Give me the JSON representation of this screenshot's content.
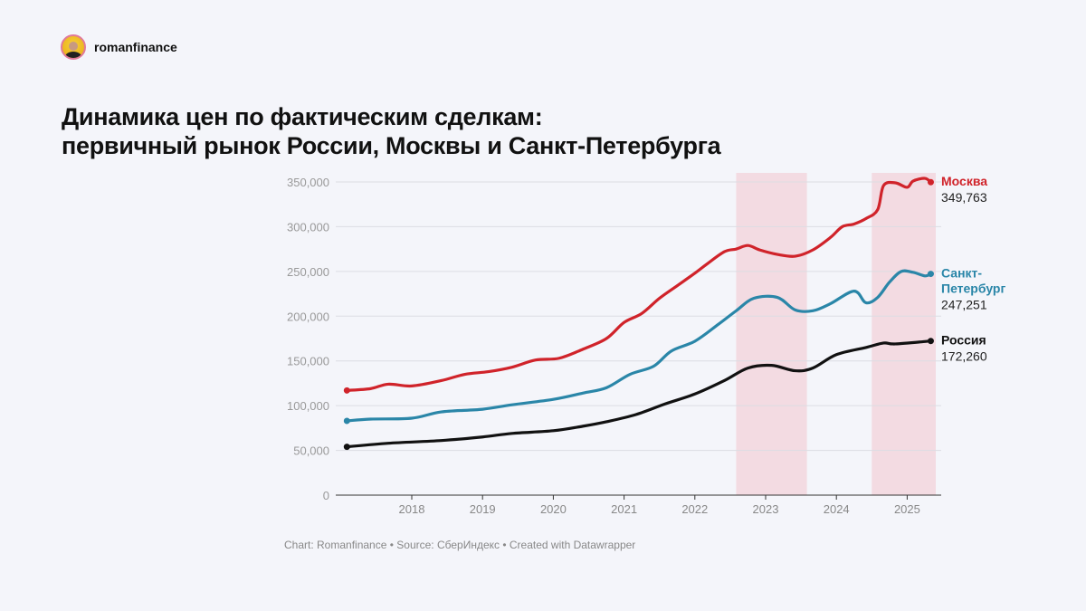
{
  "brand": {
    "name": "romanfinance",
    "avatar_icon": "author-avatar"
  },
  "title_line1": "Динамика цен по фактическим сделкам:",
  "title_line2": "первичный рынок России, Москвы и Санкт-Петербурга",
  "footer": "Chart: Romanfinance • Source: СберИндекс • Created with Datawrapper",
  "chart_data": {
    "type": "line",
    "title": "Динамика цен по фактическим сделкам: первичный рынок России, Москвы и Санкт-Петербурга",
    "ylim": [
      0,
      350000
    ],
    "y_ticks": [
      0,
      50000,
      100000,
      150000,
      200000,
      250000,
      300000,
      350000
    ],
    "y_tick_labels": [
      "0",
      "50,000",
      "100,000",
      "150,000",
      "200,000",
      "250,000",
      "300,000",
      "350,000"
    ],
    "x_tick_labels": [
      "2018",
      "2019",
      "2020",
      "2021",
      "2022",
      "2023",
      "2024",
      "2025"
    ],
    "xlim": [
      "2017-01",
      "2025-07"
    ],
    "grid": true,
    "legend": "direct labels at line ends (right)",
    "shaded_periods": [
      [
        "2022-08",
        "2023-08"
      ],
      [
        "2024-07",
        "2025-07"
      ]
    ],
    "shade_color": "#f3dbe2",
    "series": [
      {
        "name": "Москва",
        "last_label": "349,763",
        "color": "#d0232a",
        "points": [
          [
            "2017-02",
            117000
          ],
          [
            "2017-06",
            119000
          ],
          [
            "2017-09",
            124000
          ],
          [
            "2018-01",
            122000
          ],
          [
            "2018-06",
            128000
          ],
          [
            "2018-10",
            135000
          ],
          [
            "2019-02",
            138000
          ],
          [
            "2019-06",
            143000
          ],
          [
            "2019-10",
            151000
          ],
          [
            "2020-02",
            153000
          ],
          [
            "2020-06",
            163000
          ],
          [
            "2020-10",
            175000
          ],
          [
            "2021-01",
            193000
          ],
          [
            "2021-04",
            203000
          ],
          [
            "2021-07",
            220000
          ],
          [
            "2021-10",
            234000
          ],
          [
            "2022-01",
            248000
          ],
          [
            "2022-03",
            258000
          ],
          [
            "2022-06",
            272000
          ],
          [
            "2022-08",
            275000
          ],
          [
            "2022-10",
            279000
          ],
          [
            "2022-12",
            274000
          ],
          [
            "2023-03",
            269000
          ],
          [
            "2023-06",
            267000
          ],
          [
            "2023-09",
            274000
          ],
          [
            "2023-12",
            288000
          ],
          [
            "2024-02",
            300000
          ],
          [
            "2024-04",
            303000
          ],
          [
            "2024-06",
            309000
          ],
          [
            "2024-08",
            319000
          ],
          [
            "2024-09",
            346000
          ],
          [
            "2024-11",
            349000
          ],
          [
            "2025-01",
            344000
          ],
          [
            "2025-02",
            351000
          ],
          [
            "2025-04",
            354000
          ],
          [
            "2025-05",
            349763
          ]
        ]
      },
      {
        "name": "Санкт-Петербург",
        "name_line1": "Санкт-",
        "name_line2": "Петербург",
        "last_label": "247,251",
        "color": "#2a86a8",
        "points": [
          [
            "2017-02",
            83000
          ],
          [
            "2017-06",
            85000
          ],
          [
            "2018-01",
            86000
          ],
          [
            "2018-06",
            93000
          ],
          [
            "2019-01",
            96000
          ],
          [
            "2019-06",
            101000
          ],
          [
            "2020-01",
            107000
          ],
          [
            "2020-06",
            114000
          ],
          [
            "2020-10",
            120000
          ],
          [
            "2021-02",
            135000
          ],
          [
            "2021-06",
            144000
          ],
          [
            "2021-09",
            161000
          ],
          [
            "2022-01",
            172000
          ],
          [
            "2022-05",
            191000
          ],
          [
            "2022-08",
            206000
          ],
          [
            "2022-11",
            220000
          ],
          [
            "2023-03",
            221000
          ],
          [
            "2023-06",
            207000
          ],
          [
            "2023-09",
            206000
          ],
          [
            "2023-12",
            214000
          ],
          [
            "2024-04",
            228000
          ],
          [
            "2024-06",
            215000
          ],
          [
            "2024-08",
            221000
          ],
          [
            "2024-10",
            238000
          ],
          [
            "2024-12",
            250000
          ],
          [
            "2025-02",
            249000
          ],
          [
            "2025-04",
            245000
          ],
          [
            "2025-05",
            247251
          ]
        ]
      },
      {
        "name": "Россия",
        "last_label": "172,260",
        "color": "#111111",
        "points": [
          [
            "2017-02",
            54000
          ],
          [
            "2017-09",
            58000
          ],
          [
            "2018-06",
            61000
          ],
          [
            "2019-01",
            65000
          ],
          [
            "2019-06",
            69000
          ],
          [
            "2020-01",
            72000
          ],
          [
            "2020-06",
            77000
          ],
          [
            "2020-10",
            82000
          ],
          [
            "2021-03",
            90000
          ],
          [
            "2021-08",
            102000
          ],
          [
            "2022-01",
            113000
          ],
          [
            "2022-06",
            128000
          ],
          [
            "2022-10",
            142000
          ],
          [
            "2023-02",
            145000
          ],
          [
            "2023-06",
            139000
          ],
          [
            "2023-09",
            142000
          ],
          [
            "2024-01",
            157000
          ],
          [
            "2024-06",
            165000
          ],
          [
            "2024-09",
            170000
          ],
          [
            "2024-11",
            169000
          ],
          [
            "2025-05",
            172260
          ]
        ]
      }
    ]
  }
}
